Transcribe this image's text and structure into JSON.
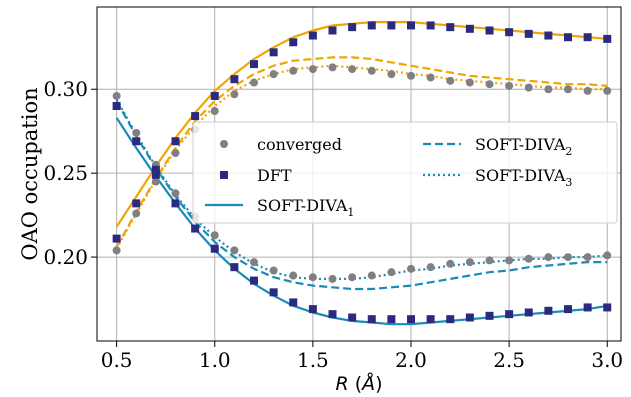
{
  "chart_data": {
    "type": "scatter",
    "xlabel": "R (Å)",
    "ylabel": "OAO occupation",
    "xlim": [
      0.4,
      3.07
    ],
    "ylim": [
      0.15,
      0.349
    ],
    "xticks": [
      "0.5",
      "1.0",
      "1.5",
      "2.0",
      "2.5",
      "3.0"
    ],
    "yticks": [
      "0.20",
      "0.25",
      "0.30"
    ],
    "grid": true,
    "legend_placement": "center",
    "legend": [
      {
        "label": "converged",
        "kind": "circle",
        "color": "#808080"
      },
      {
        "label": "SOFT-DIVA",
        "sub": "2",
        "kind": "dashed",
        "color": "#1a8ab8"
      },
      {
        "label": "DFT",
        "kind": "square",
        "color": "#2a2a80"
      },
      {
        "label": "SOFT-DIVA",
        "sub": "3",
        "kind": "dotted",
        "color": "#1a8ab8"
      },
      {
        "label": "SOFT-DIVA",
        "sub": "1",
        "kind": "solid",
        "color": "#1a8ab8"
      }
    ],
    "x": [
      0.5,
      0.6,
      0.7,
      0.8,
      0.9,
      1.0,
      1.1,
      1.2,
      1.3,
      1.4,
      1.5,
      1.6,
      1.7,
      1.8,
      1.9,
      2.0,
      2.1,
      2.2,
      2.3,
      2.4,
      2.5,
      2.6,
      2.7,
      2.8,
      2.9,
      3.0
    ],
    "series": [
      {
        "name": "converged",
        "kind": "circle",
        "color": "#808080",
        "values": [
          0.204,
          0.226,
          0.245,
          0.262,
          0.276,
          0.287,
          0.297,
          0.304,
          0.309,
          0.311,
          0.312,
          0.313,
          0.312,
          0.311,
          0.309,
          0.308,
          0.307,
          0.305,
          0.304,
          0.303,
          0.302,
          0.301,
          0.3,
          0.3,
          0.299,
          0.299
        ]
      },
      {
        "name": "converged",
        "kind": "circle",
        "color": "#808080",
        "values": [
          0.296,
          0.274,
          0.255,
          0.238,
          0.224,
          0.213,
          0.204,
          0.197,
          0.192,
          0.189,
          0.188,
          0.187,
          0.188,
          0.189,
          0.191,
          0.193,
          0.194,
          0.196,
          0.197,
          0.198,
          0.198,
          0.199,
          0.2,
          0.2,
          0.2,
          0.201
        ]
      },
      {
        "name": "DFT",
        "kind": "square",
        "color": "#2a2a80",
        "values": [
          0.211,
          0.232,
          0.252,
          0.269,
          0.284,
          0.296,
          0.306,
          0.315,
          0.322,
          0.328,
          0.332,
          0.335,
          0.337,
          0.338,
          0.338,
          0.338,
          0.338,
          0.337,
          0.336,
          0.335,
          0.334,
          0.333,
          0.332,
          0.331,
          0.331,
          0.33
        ]
      },
      {
        "name": "DFT",
        "kind": "square",
        "color": "#2a2a80",
        "values": [
          0.29,
          0.269,
          0.249,
          0.232,
          0.217,
          0.205,
          0.194,
          0.186,
          0.179,
          0.173,
          0.169,
          0.166,
          0.164,
          0.163,
          0.163,
          0.163,
          0.163,
          0.163,
          0.164,
          0.165,
          0.166,
          0.167,
          0.168,
          0.169,
          0.17,
          0.17
        ]
      },
      {
        "name": "SOFT-DIVA1",
        "kind": "solid",
        "color": "#f0a500",
        "values": [
          0.218,
          0.236,
          0.254,
          0.271,
          0.286,
          0.299,
          0.309,
          0.318,
          0.325,
          0.331,
          0.335,
          0.338,
          0.339,
          0.34,
          0.34,
          0.34,
          0.339,
          0.338,
          0.337,
          0.336,
          0.335,
          0.334,
          0.333,
          0.332,
          0.331,
          0.33
        ]
      },
      {
        "name": "SOFT-DIVA1",
        "kind": "solid",
        "color": "#1a8ab8",
        "values": [
          0.283,
          0.265,
          0.248,
          0.232,
          0.217,
          0.204,
          0.193,
          0.184,
          0.177,
          0.171,
          0.167,
          0.164,
          0.162,
          0.161,
          0.16,
          0.16,
          0.161,
          0.162,
          0.163,
          0.164,
          0.165,
          0.166,
          0.167,
          0.168,
          0.169,
          0.171
        ]
      },
      {
        "name": "SOFT-DIVA2",
        "kind": "dashed",
        "color": "#f0a500",
        "values": [
          0.206,
          0.227,
          0.247,
          0.265,
          0.281,
          0.293,
          0.302,
          0.309,
          0.314,
          0.317,
          0.318,
          0.319,
          0.319,
          0.318,
          0.316,
          0.314,
          0.312,
          0.31,
          0.308,
          0.307,
          0.306,
          0.305,
          0.304,
          0.303,
          0.303,
          0.302
        ]
      },
      {
        "name": "SOFT-DIVA2",
        "kind": "dashed",
        "color": "#1a8ab8",
        "values": [
          0.293,
          0.272,
          0.253,
          0.236,
          0.221,
          0.209,
          0.2,
          0.193,
          0.188,
          0.185,
          0.183,
          0.182,
          0.181,
          0.181,
          0.182,
          0.183,
          0.185,
          0.187,
          0.189,
          0.191,
          0.192,
          0.194,
          0.195,
          0.196,
          0.197,
          0.197
        ]
      },
      {
        "name": "SOFT-DIVA3",
        "kind": "dotted",
        "color": "#f0a500",
        "values": [
          0.205,
          0.226,
          0.246,
          0.264,
          0.278,
          0.29,
          0.299,
          0.305,
          0.309,
          0.312,
          0.313,
          0.314,
          0.313,
          0.312,
          0.311,
          0.309,
          0.308,
          0.306,
          0.305,
          0.304,
          0.303,
          0.302,
          0.301,
          0.301,
          0.3,
          0.3
        ]
      },
      {
        "name": "SOFT-DIVA3",
        "kind": "dotted",
        "color": "#1a8ab8",
        "values": [
          0.294,
          0.273,
          0.254,
          0.237,
          0.223,
          0.212,
          0.203,
          0.196,
          0.191,
          0.188,
          0.187,
          0.187,
          0.187,
          0.188,
          0.19,
          0.192,
          0.193,
          0.195,
          0.196,
          0.197,
          0.198,
          0.199,
          0.199,
          0.2,
          0.2,
          0.201
        ]
      }
    ]
  }
}
